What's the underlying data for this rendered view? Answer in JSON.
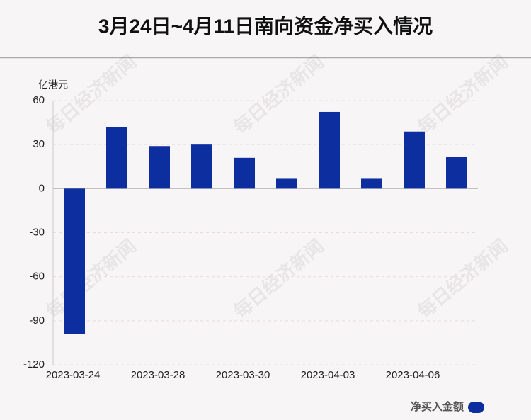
{
  "chart_data": {
    "type": "bar",
    "title": "3月24日~4月11日南向资金净买入情况",
    "y_label": "亿港元",
    "categories": [
      "2023-03-24",
      null,
      "2023-03-28",
      null,
      "2023-03-30",
      null,
      "2023-04-03",
      null,
      "2023-04-06",
      null
    ],
    "series": [
      {
        "name": "净买入金额",
        "color": "#0d2e9e",
        "values": [
          -99,
          42,
          29,
          30,
          21,
          6.7,
          52.3,
          6.7,
          38.9,
          21.6
        ]
      }
    ],
    "ylim": [
      -120,
      60
    ],
    "yticks": [
      -120,
      -90,
      -60,
      -30,
      0,
      30,
      60
    ],
    "grid": true,
    "legend": "bottom-right",
    "watermark": "每日经济新闻"
  }
}
